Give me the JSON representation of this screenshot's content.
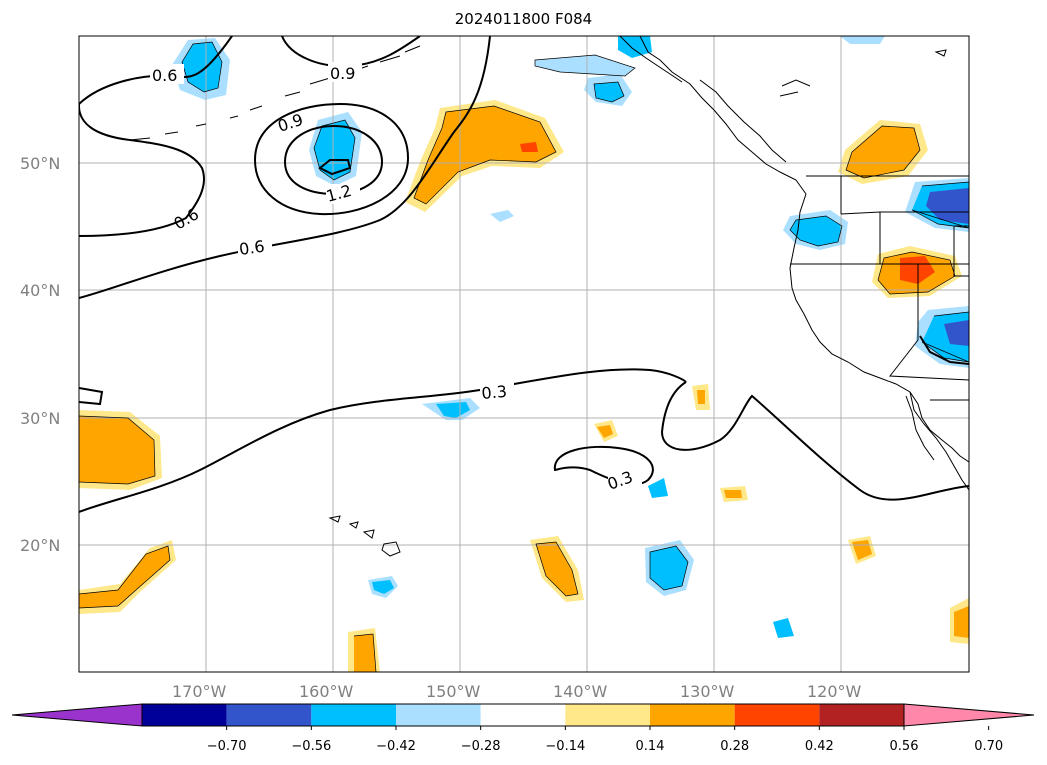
{
  "title": "2024011800 F084",
  "lon_labels": [
    "170°W",
    "160°W",
    "150°W",
    "140°W",
    "130°W",
    "120°W"
  ],
  "lat_labels": [
    "50°N",
    "40°N",
    "30°N",
    "20°N"
  ],
  "contour_labels": [
    "0.6",
    "0.9",
    "0.9",
    "1.2",
    "0.6",
    "0.6",
    "0.3",
    "0.3"
  ],
  "colorbar": {
    "ticks": [
      "−0.70",
      "−0.56",
      "−0.42",
      "−0.28",
      "−0.14",
      "0.14",
      "0.28",
      "0.42",
      "0.56",
      "0.70"
    ],
    "colors": [
      "#9933cc",
      "#000099",
      "#3355cc",
      "#00bfff",
      "#aadfff",
      "#ffffff",
      "#ffe88a",
      "#ffa500",
      "#ff4400",
      "#b22222",
      "#ff88aa"
    ]
  },
  "shade_colors": {
    "neg_light": "#aadfff",
    "neg_mid": "#00bfff",
    "neg_strong": "#3355cc",
    "pos_light": "#ffe88a",
    "pos_mid": "#ffa500",
    "pos_strong": "#ff4400"
  }
}
